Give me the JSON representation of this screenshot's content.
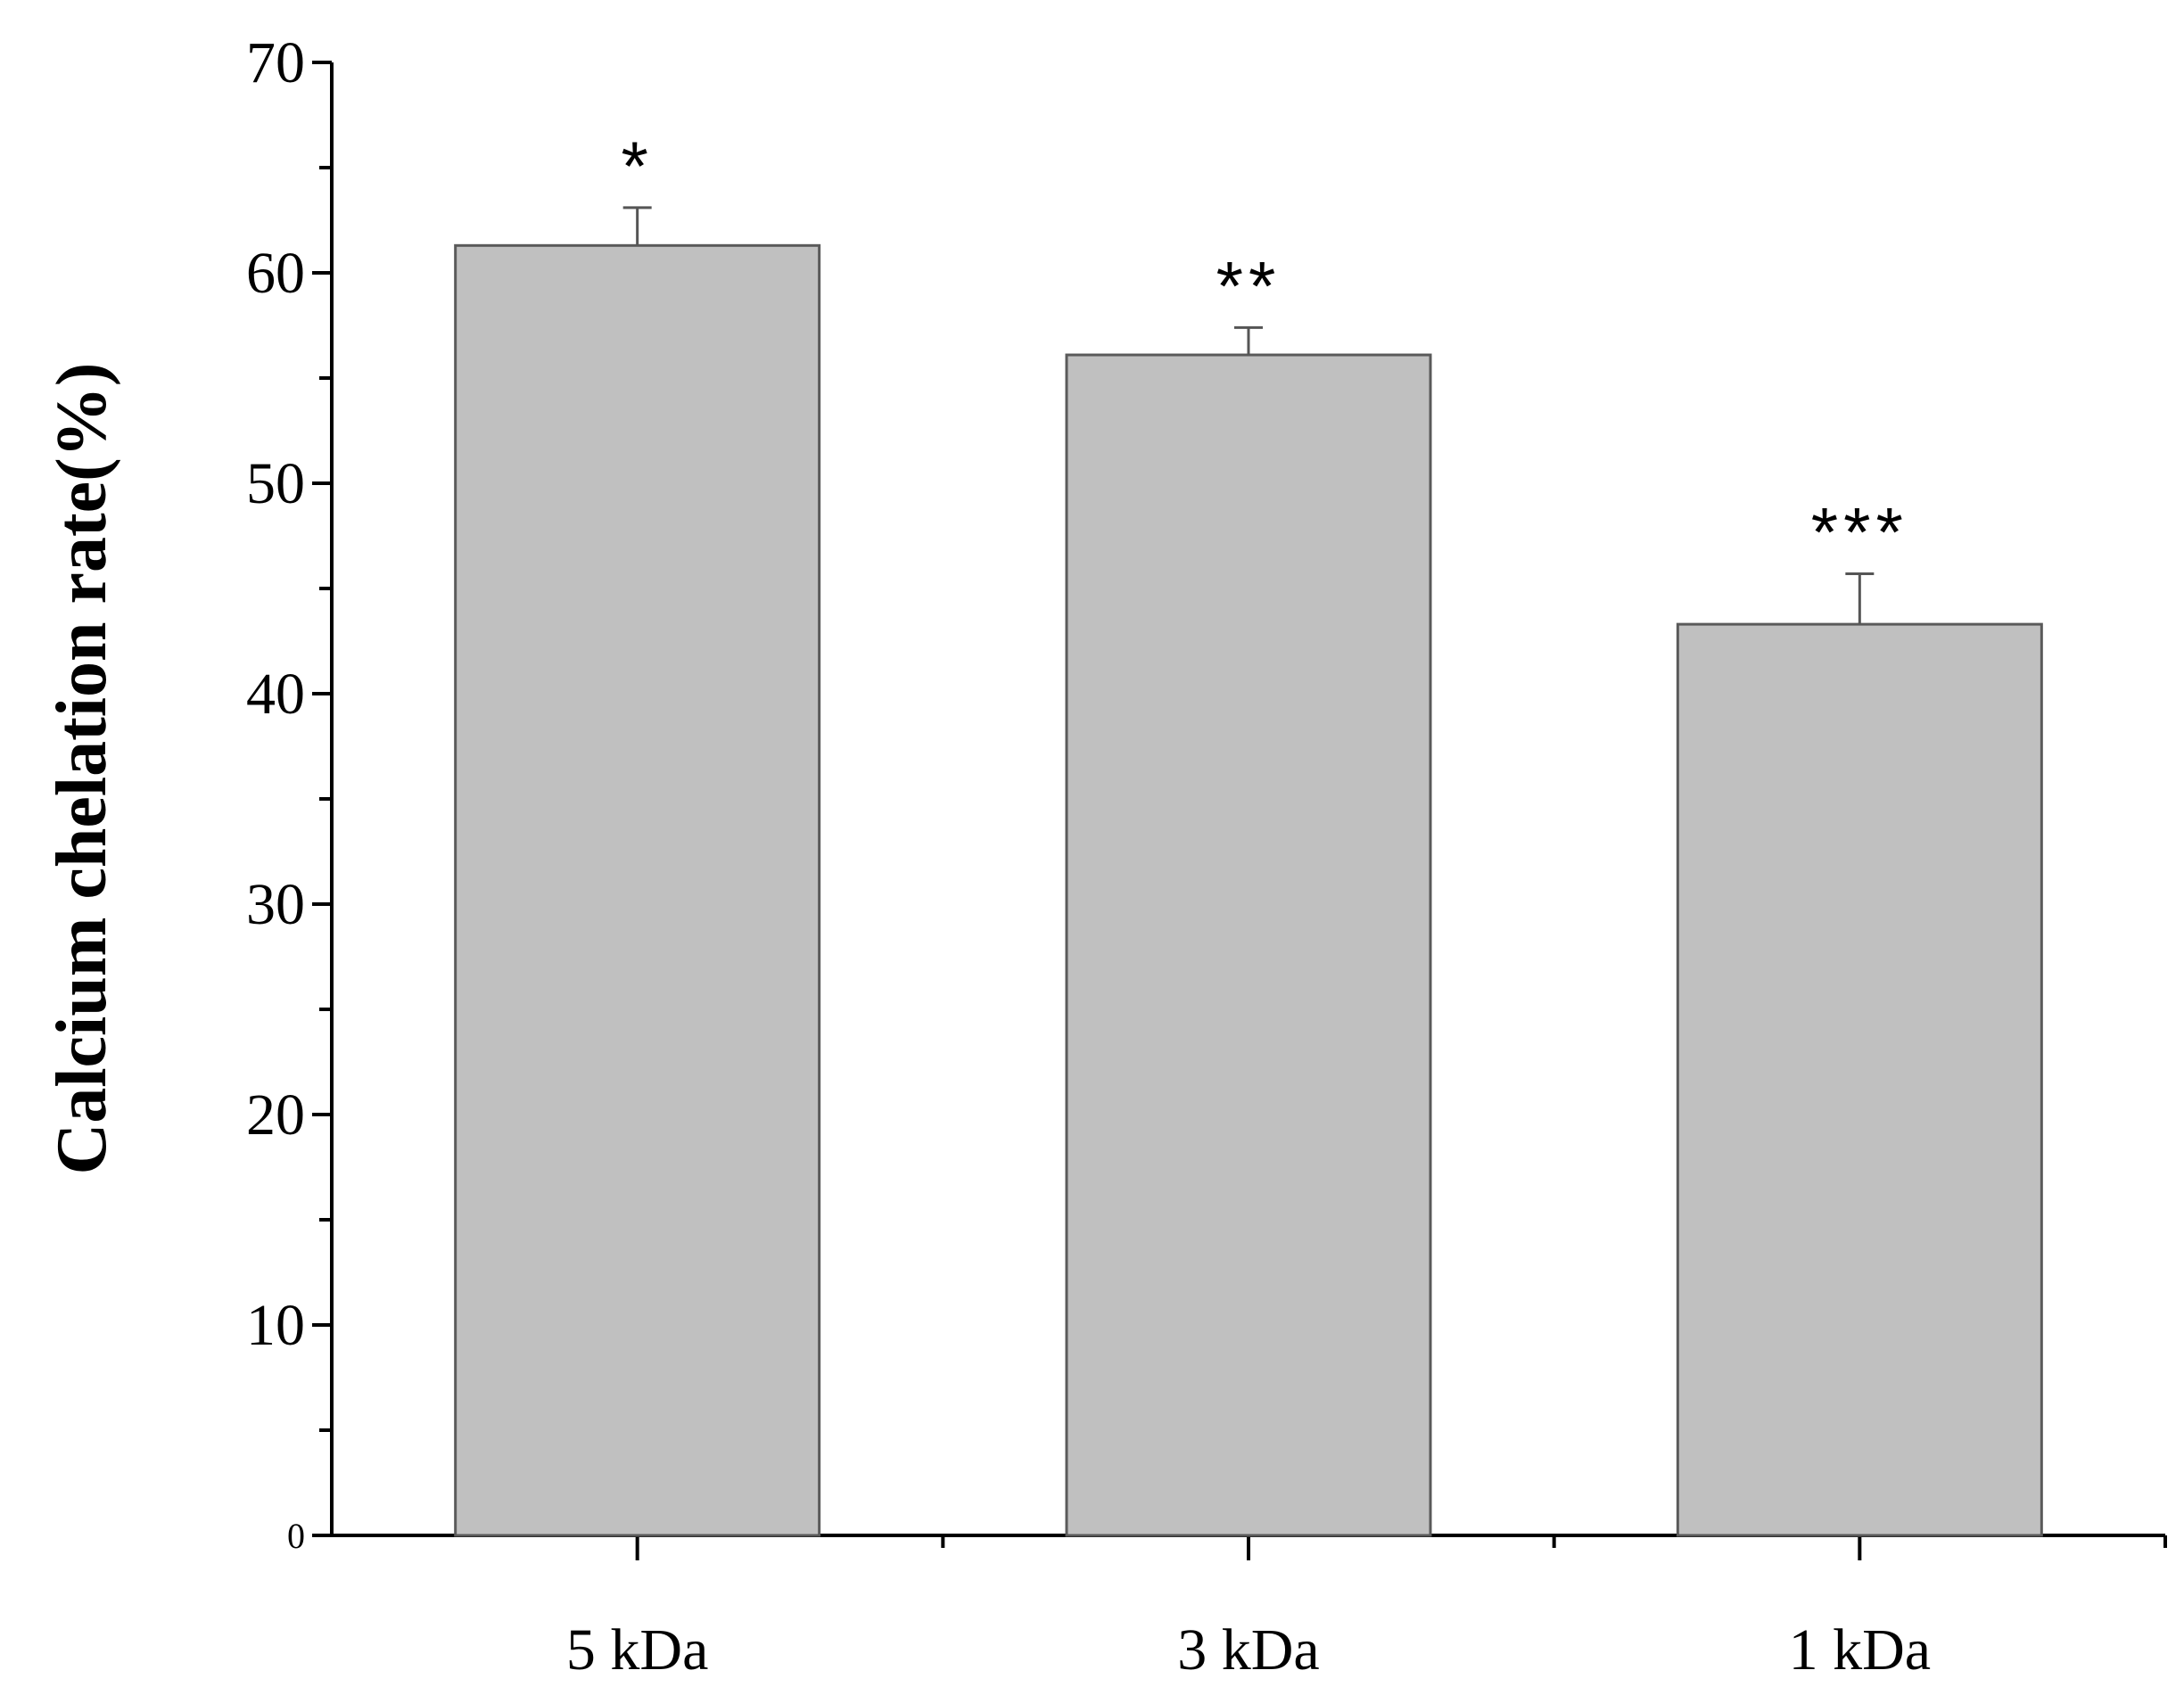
{
  "chart_data": {
    "type": "bar",
    "categories": [
      "5 kDa",
      "3 kDa",
      "1 kDa"
    ],
    "values": [
      61.3,
      56.1,
      43.3
    ],
    "errors": [
      1.8,
      1.3,
      2.4
    ],
    "significance": [
      "*",
      "**",
      "***"
    ],
    "ylabel": "Calcium chelation rate(%)",
    "xlabel": "",
    "ylim": [
      0,
      70
    ],
    "yticks": [
      0,
      10,
      20,
      30,
      40,
      50,
      60,
      70
    ],
    "grid": false,
    "bar_color": "#c0c0c0",
    "bar_edge_color": "#5a5a5a",
    "axis_color": "#000000"
  }
}
